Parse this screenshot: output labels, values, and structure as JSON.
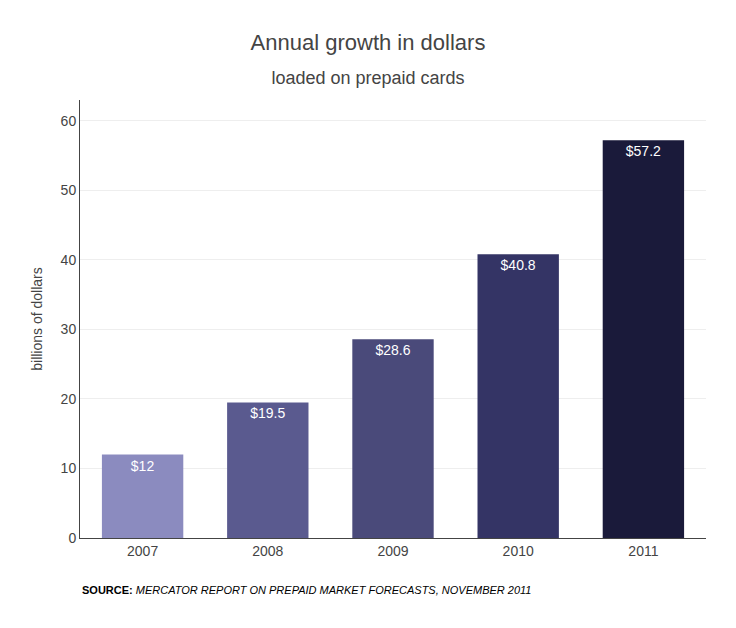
{
  "chart_data": {
    "type": "bar",
    "title": "Annual growth in dollars",
    "subtitle": "loaded on prepaid cards",
    "y_label": "billions of dollars",
    "categories": [
      "2007",
      "2008",
      "2009",
      "2010",
      "2011"
    ],
    "values": [
      12.0,
      19.5,
      28.6,
      40.8,
      57.2
    ],
    "value_labels": [
      "$12",
      "$19.5",
      "$28.6",
      "$40.8",
      "$57.2"
    ],
    "data_labels": true,
    "colors": [
      "#8b8bbf",
      "#5a5a8f",
      "#4a4a7a",
      "#343465",
      "#1a1a3a"
    ],
    "ylim": [
      0,
      63
    ],
    "yticks": [
      0,
      10,
      20,
      30,
      40,
      50,
      60
    ],
    "grid": true,
    "annotations": [
      "SOURCE:",
      "MERCATOR REPORT ON PREPAID MARKET FORECASTS, NOVEMBER 2011"
    ]
  }
}
